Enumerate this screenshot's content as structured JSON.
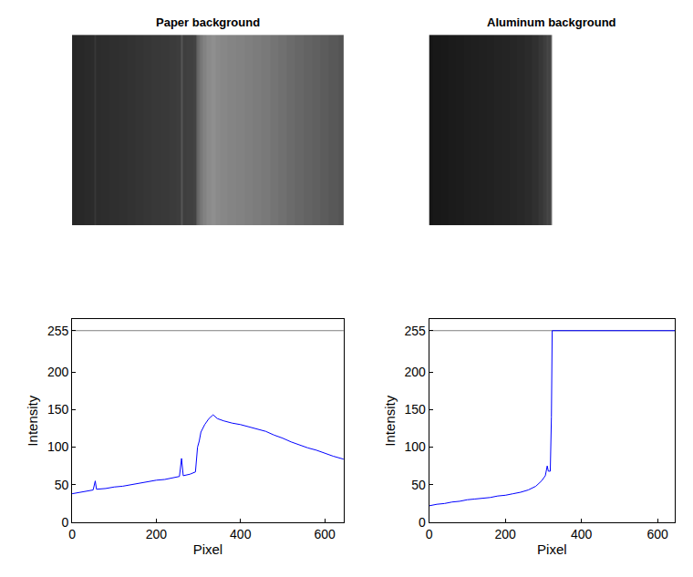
{
  "chart_data": [
    {
      "type": "line",
      "title": "Paper background",
      "xlabel": "Pixel",
      "ylabel": "Intensity",
      "x": [
        0,
        20,
        40,
        50,
        55,
        58,
        80,
        100,
        120,
        140,
        160,
        180,
        200,
        220,
        240,
        255,
        260,
        264,
        280,
        293,
        298,
        302,
        306,
        315,
        325,
        335,
        345,
        360,
        380,
        400,
        420,
        440,
        460,
        480,
        500,
        520,
        540,
        560,
        580,
        600,
        620,
        645
      ],
      "values": [
        38,
        40,
        42,
        43,
        55,
        44,
        45,
        47,
        48,
        50,
        52,
        54,
        56,
        57,
        59,
        61,
        85,
        62,
        64,
        67,
        100,
        108,
        120,
        130,
        138,
        143,
        138,
        135,
        132,
        130,
        127,
        124,
        121,
        116,
        112,
        107,
        103,
        99,
        96,
        92,
        88,
        84
      ],
      "color": "#0000ff",
      "saturation_level": 255,
      "xlim": [
        0,
        645
      ],
      "ylim": [
        0,
        270
      ],
      "xticks": [
        0,
        200,
        400,
        600
      ],
      "yticks": [
        0,
        50,
        100,
        150,
        200,
        255
      ]
    },
    {
      "type": "line",
      "title": "Aluminum background",
      "xlabel": "Pixel",
      "ylabel": "Intensity",
      "x": [
        0,
        20,
        40,
        60,
        80,
        100,
        120,
        140,
        160,
        180,
        200,
        220,
        240,
        260,
        280,
        295,
        305,
        310,
        313,
        318,
        321,
        323,
        340,
        400,
        500,
        600,
        645
      ],
      "values": [
        22,
        24,
        25,
        27,
        28,
        30,
        31,
        32,
        33,
        35,
        36,
        38,
        40,
        43,
        48,
        55,
        62,
        75,
        68,
        68,
        140,
        255,
        255,
        255,
        255,
        255,
        255
      ],
      "color": "#0000ff",
      "saturation_level": 255,
      "xlim": [
        0,
        645
      ],
      "ylim": [
        0,
        270
      ],
      "xticks": [
        0,
        200,
        400,
        600
      ],
      "yticks": [
        0,
        50,
        100,
        150,
        200,
        255
      ]
    }
  ]
}
